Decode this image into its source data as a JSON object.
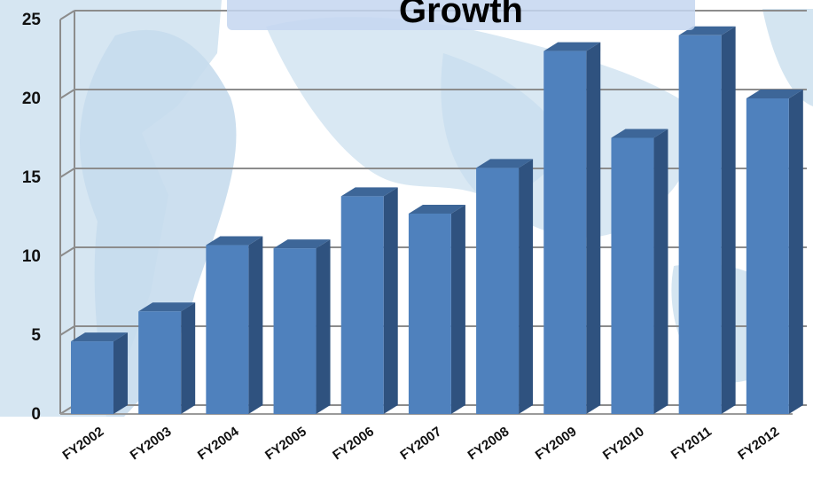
{
  "chart_data": {
    "type": "bar",
    "title": "Growth",
    "xlabel": "",
    "ylabel": "",
    "categories": [
      "FY2002",
      "FY2003",
      "FY2004",
      "FY2005",
      "FY2006",
      "FY2007",
      "FY2008",
      "FY2009",
      "FY2010",
      "FY2011",
      "FY2012"
    ],
    "values": [
      4.6,
      6.5,
      10.7,
      10.5,
      13.8,
      12.7,
      15.6,
      23.0,
      17.5,
      24.0,
      20.0
    ],
    "ylim": [
      0,
      25
    ],
    "yticks": [
      "0",
      "5",
      "10",
      "15",
      "20",
      "25"
    ],
    "grid": true,
    "legend": "none",
    "colors": {
      "bar_front": "#4f81bd",
      "bar_side": "#2f527f",
      "bar_top": "#3d6698",
      "gridline": "#8c8c8c",
      "background_map": "#d6e6f2"
    }
  }
}
